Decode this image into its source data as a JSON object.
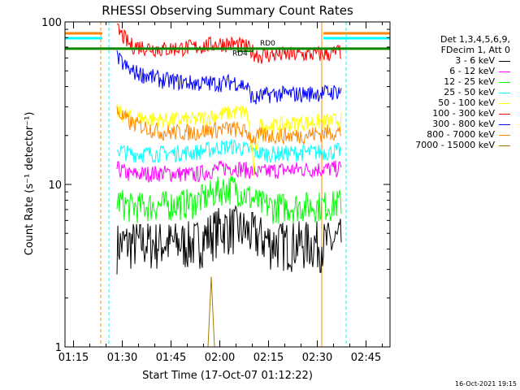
{
  "chart_data": {
    "type": "line",
    "title": "RHESSI Observing Summary Count Rates",
    "xlabel": "Start Time (17-Oct-07 01:12:22)",
    "ylabel": "Count Rate (s⁻¹ detector⁻¹)",
    "yscale": "log",
    "ylim": [
      1,
      100
    ],
    "xlim_minutes_from_start": [
      0,
      100
    ],
    "x_tick_labels": [
      "01:15",
      "01:30",
      "01:45",
      "02:00",
      "02:15",
      "02:30",
      "02:45"
    ],
    "y_tick_labels": [
      "1",
      "10",
      "100"
    ],
    "grid": false,
    "legend_position": "right, outside plot",
    "legend_header": [
      "Det 1,3,4,5,6,9,",
      "FDecim 1, Att 0"
    ],
    "series": [
      {
        "name": "3 - 6 keV",
        "color": "#000000",
        "x": [
          16,
          20,
          30,
          40,
          48,
          52,
          60,
          64,
          72,
          82,
          85
        ],
        "values": [
          4.3,
          4.4,
          4.4,
          4.4,
          5.5,
          5.5,
          4.8,
          4.4,
          4.4,
          4.4,
          4.6
        ]
      },
      {
        "name": "6 - 12 keV",
        "color": "#ff00ff",
        "x": [
          16,
          20,
          30,
          40,
          48,
          52,
          60,
          64,
          72,
          82,
          85
        ],
        "values": [
          12.5,
          11.5,
          11.8,
          11.5,
          12.6,
          12.8,
          11.8,
          12.2,
          12.4,
          12.5,
          12.6
        ]
      },
      {
        "name": "12 - 25 keV",
        "color": "#00ff00",
        "x": [
          16,
          20,
          30,
          40,
          48,
          52,
          60,
          64,
          72,
          82,
          85
        ],
        "values": [
          8.0,
          7.3,
          7.5,
          7.8,
          9.4,
          9.6,
          7.6,
          7.3,
          7.4,
          7.5,
          7.8
        ]
      },
      {
        "name": "25 - 50 keV",
        "color": "#00ffff",
        "x": [
          16,
          20,
          30,
          40,
          48,
          52,
          60,
          64,
          72,
          82,
          85
        ],
        "values": [
          16.5,
          15.5,
          15.5,
          15.8,
          17.0,
          17.2,
          15.6,
          15.4,
          15.7,
          15.9,
          16.2
        ]
      },
      {
        "name": "50 - 100 keV",
        "color": "#ffff00",
        "x": [
          16,
          20,
          30,
          40,
          48,
          52,
          56,
          58,
          60,
          64,
          72,
          82,
          85
        ],
        "values": [
          28,
          26,
          25,
          25,
          27,
          28,
          28,
          12,
          23,
          23,
          24,
          24.5,
          25
        ]
      },
      {
        "name": "100 - 300 keV",
        "color": "#ff0000",
        "x": [
          16,
          20,
          30,
          40,
          48,
          52,
          56,
          58,
          60,
          64,
          72,
          82,
          85
        ],
        "values": [
          90,
          72,
          68,
          70,
          74,
          73,
          70,
          65,
          62,
          63,
          63,
          64,
          66
        ]
      },
      {
        "name": "300 - 800 keV",
        "color": "#0000ff",
        "x": [
          16,
          20,
          30,
          40,
          48,
          52,
          56,
          58,
          60,
          64,
          72,
          82,
          85
        ],
        "values": [
          60,
          50,
          44,
          42,
          42,
          43,
          40,
          33,
          35,
          36,
          36,
          37,
          38
        ]
      },
      {
        "name": "800 - 7000 keV",
        "color": "#ff8800",
        "x": [
          16,
          20,
          30,
          40,
          48,
          52,
          56,
          58,
          60,
          64,
          72,
          82,
          85
        ],
        "values": [
          28,
          24,
          21,
          21,
          22,
          22,
          21,
          19,
          20,
          20,
          20,
          21,
          21
        ]
      },
      {
        "name": "7000 - 15000 keV",
        "color": "#aa7700",
        "x": [
          0,
          44,
          45,
          46,
          100
        ],
        "values": [
          1,
          1,
          2.7,
          1,
          1
        ]
      }
    ],
    "annotations": [
      "RD4",
      "RD0"
    ],
    "night_intervals_minutes": [
      [
        0,
        11.5
      ],
      [
        79.5,
        100
      ]
    ],
    "saa_markers_minutes": [
      11,
      13.5,
      79,
      86.5
    ]
  },
  "footer_timestamp": "16-Oct-2021 19:15"
}
